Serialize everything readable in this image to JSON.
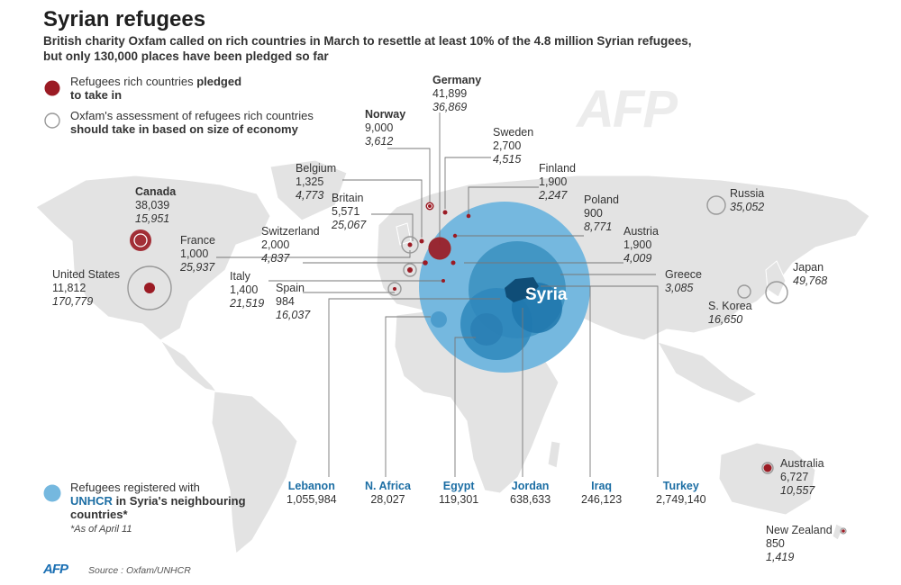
{
  "title": "Syrian refugees",
  "subtitle_line1": "British charity Oxfam called on rich countries in March to resettle at least 10% of the 4.8 million Syrian refugees,",
  "subtitle_line2": "but only 130,000 places have been pledged so far",
  "legend": {
    "pledged_line1": "Refugees rich countries ",
    "pledged_bold": "pledged",
    "pledged_line2": "to take in",
    "oxfam_line1": "Oxfam's assessment of refugees rich countries",
    "oxfam_line2": "should take in based on size of economy",
    "unhcr_line1": "Refugees registered with",
    "unhcr_bold": "UNHCR",
    "unhcr_line2": " in Syria's neighbouring",
    "unhcr_line3": "countries*"
  },
  "footnote": "*As of April 11",
  "source": "Source : Oxfam/UNHCR",
  "logo": "AFP",
  "watermark": "AFP",
  "focus_label": "Syria",
  "colors": {
    "pledged": "#9b1b24",
    "unhcr": "#6fb5de",
    "land": "#e3e3e3",
    "hood_name": "#1c6ea4"
  },
  "countries": {
    "canada": {
      "name": "Canada",
      "pledged": "38,039",
      "share": "15,951"
    },
    "us": {
      "name": "United States",
      "pledged": "11,812",
      "share": "170,779"
    },
    "france": {
      "name": "France",
      "pledged": "1,000",
      "share": "25,937"
    },
    "belgium": {
      "name": "Belgium",
      "pledged": "1,325",
      "share": "4,773"
    },
    "britain": {
      "name": "Britain",
      "pledged": "5,571",
      "share": "25,067"
    },
    "switzerland": {
      "name": "Switzerland",
      "pledged": "2,000",
      "share": "4,837"
    },
    "italy": {
      "name": "Italy",
      "pledged": "1,400",
      "share": "21,519"
    },
    "spain": {
      "name": "Spain",
      "pledged": "984",
      "share": "16,037"
    },
    "norway": {
      "name": "Norway",
      "pledged": "9,000",
      "share": "3,612"
    },
    "germany": {
      "name": "Germany",
      "pledged": "41,899",
      "share": "36,869"
    },
    "sweden": {
      "name": "Sweden",
      "pledged": "2,700",
      "share": "4,515"
    },
    "finland": {
      "name": "Finland",
      "pledged": "1,900",
      "share": "2,247"
    },
    "poland": {
      "name": "Poland",
      "pledged": "900",
      "share": "8,771"
    },
    "austria": {
      "name": "Austria",
      "pledged": "1,900",
      "share": "4,009"
    },
    "greece": {
      "name": "Greece",
      "share": "3,085"
    },
    "russia": {
      "name": "Russia",
      "share": "35,052"
    },
    "japan": {
      "name": "Japan",
      "share": "49,768"
    },
    "skorea": {
      "name": "S. Korea",
      "share": "16,650"
    },
    "australia": {
      "name": "Australia",
      "pledged": "6,727",
      "share": "10,557"
    },
    "newzealand": {
      "name": "New Zealand",
      "pledged": "850",
      "share": "1,419"
    }
  },
  "neighbours": [
    {
      "name": "Lebanon",
      "value": "1,055,984"
    },
    {
      "name": "N. Africa",
      "value": "28,027"
    },
    {
      "name": "Egypt",
      "value": "119,301"
    },
    {
      "name": "Jordan",
      "value": "638,633"
    },
    {
      "name": "Iraq",
      "value": "246,123"
    },
    {
      "name": "Turkey",
      "value": "2,749,140"
    }
  ]
}
